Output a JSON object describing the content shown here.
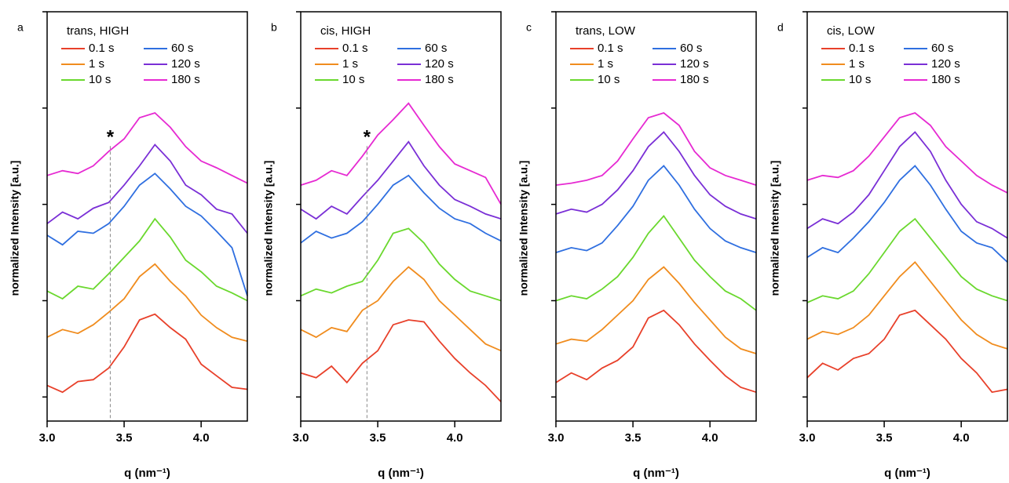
{
  "chart_data": [
    {
      "type": "line",
      "panel": "a",
      "legend_title": "trans, HIGH",
      "xlabel": "q (nm⁻¹)",
      "ylabel": "normalized Intensity [a.u.]",
      "x": [
        3.0,
        3.1,
        3.2,
        3.3,
        3.4,
        3.5,
        3.6,
        3.7,
        3.8,
        3.9,
        4.0,
        4.1,
        4.2,
        4.3
      ],
      "xlim": [
        3.0,
        4.3
      ],
      "ylim": [
        -0.25,
        4
      ],
      "xticks": [
        {
          "value": 3,
          "label": "3.0"
        },
        {
          "value": 3.5,
          "label": "3.5"
        },
        {
          "value": 4,
          "label": "4.0"
        }
      ],
      "yticks": [
        0,
        1,
        2,
        3,
        4
      ],
      "annotations": [
        {
          "text": "*",
          "x": 3.41,
          "y": 2.72
        }
      ],
      "series": [
        {
          "name": "0.1 s",
          "color": "#e8402a",
          "values": [
            0.12,
            0.05,
            0.16,
            0.18,
            0.3,
            0.52,
            0.8,
            0.86,
            0.72,
            0.6,
            0.34,
            0.22,
            0.1,
            0.08
          ]
        },
        {
          "name": "1 s",
          "color": "#f08c1e",
          "values": [
            0.62,
            0.7,
            0.66,
            0.75,
            0.88,
            1.02,
            1.25,
            1.38,
            1.2,
            1.05,
            0.85,
            0.72,
            0.62,
            0.58
          ]
        },
        {
          "name": "10 s",
          "color": "#6ad82e",
          "values": [
            1.1,
            1.02,
            1.15,
            1.12,
            1.28,
            1.45,
            1.62,
            1.85,
            1.66,
            1.42,
            1.3,
            1.15,
            1.08,
            1.0
          ]
        },
        {
          "name": "60 s",
          "color": "#2f6fe0",
          "values": [
            1.68,
            1.58,
            1.72,
            1.7,
            1.8,
            1.98,
            2.2,
            2.32,
            2.16,
            1.98,
            1.88,
            1.72,
            1.55,
            1.05
          ]
        },
        {
          "name": "120 s",
          "color": "#7a2fd6",
          "values": [
            1.8,
            1.92,
            1.85,
            1.96,
            2.02,
            2.2,
            2.4,
            2.62,
            2.45,
            2.2,
            2.1,
            1.95,
            1.9,
            1.7
          ]
        },
        {
          "name": "180 s",
          "color": "#e62ad2",
          "values": [
            2.3,
            2.35,
            2.32,
            2.4,
            2.55,
            2.68,
            2.9,
            2.95,
            2.8,
            2.6,
            2.45,
            2.38,
            2.3,
            2.22
          ]
        }
      ]
    },
    {
      "type": "line",
      "panel": "b",
      "legend_title": "cis, HIGH",
      "xlabel": "q (nm⁻¹)",
      "ylabel": "normalized Intensity [a.u.]",
      "x": [
        3.0,
        3.1,
        3.2,
        3.3,
        3.4,
        3.5,
        3.6,
        3.7,
        3.8,
        3.9,
        4.0,
        4.1,
        4.2,
        4.3
      ],
      "xlim": [
        3.0,
        4.3
      ],
      "ylim": [
        -0.25,
        4
      ],
      "xticks": [
        {
          "value": 3,
          "label": "3.0"
        },
        {
          "value": 3.5,
          "label": "3.5"
        },
        {
          "value": 4,
          "label": "4.0"
        }
      ],
      "yticks": [
        0,
        1,
        2,
        3,
        4
      ],
      "annotations": [
        {
          "text": "*",
          "x": 3.43,
          "y": 2.72
        }
      ],
      "series": [
        {
          "name": "0.1 s",
          "color": "#e8402a",
          "values": [
            0.25,
            0.2,
            0.32,
            0.15,
            0.35,
            0.48,
            0.75,
            0.8,
            0.78,
            0.58,
            0.4,
            0.25,
            0.12,
            -0.05
          ]
        },
        {
          "name": "1 s",
          "color": "#f08c1e",
          "values": [
            0.7,
            0.62,
            0.72,
            0.68,
            0.9,
            1.0,
            1.2,
            1.35,
            1.22,
            1.0,
            0.85,
            0.7,
            0.55,
            0.48
          ]
        },
        {
          "name": "10 s",
          "color": "#6ad82e",
          "values": [
            1.05,
            1.12,
            1.08,
            1.15,
            1.2,
            1.42,
            1.7,
            1.75,
            1.6,
            1.38,
            1.22,
            1.1,
            1.05,
            1.0
          ]
        },
        {
          "name": "60 s",
          "color": "#2f6fe0",
          "values": [
            1.6,
            1.72,
            1.65,
            1.7,
            1.82,
            2.0,
            2.2,
            2.3,
            2.12,
            1.96,
            1.85,
            1.8,
            1.7,
            1.62
          ]
        },
        {
          "name": "120 s",
          "color": "#7a2fd6",
          "values": [
            1.95,
            1.85,
            1.98,
            1.9,
            2.08,
            2.25,
            2.45,
            2.65,
            2.4,
            2.2,
            2.05,
            1.98,
            1.9,
            1.85
          ]
        },
        {
          "name": "180 s",
          "color": "#e62ad2",
          "values": [
            2.2,
            2.25,
            2.35,
            2.3,
            2.5,
            2.72,
            2.88,
            3.05,
            2.82,
            2.6,
            2.42,
            2.35,
            2.28,
            2.0
          ]
        }
      ]
    },
    {
      "type": "line",
      "panel": "c",
      "legend_title": "trans, LOW",
      "xlabel": "q (nm⁻¹)",
      "ylabel": "normalized Intensity [a.u.]",
      "x": [
        3.0,
        3.1,
        3.2,
        3.3,
        3.4,
        3.5,
        3.6,
        3.7,
        3.8,
        3.9,
        4.0,
        4.1,
        4.2,
        4.3
      ],
      "xlim": [
        3.0,
        4.3
      ],
      "ylim": [
        -0.25,
        4
      ],
      "xticks": [
        {
          "value": 3,
          "label": "3.0"
        },
        {
          "value": 3.5,
          "label": "3.5"
        },
        {
          "value": 4,
          "label": "4.0"
        }
      ],
      "yticks": [
        0,
        1,
        2,
        3,
        4
      ],
      "series": [
        {
          "name": "0.1 s",
          "color": "#e8402a",
          "values": [
            0.15,
            0.25,
            0.18,
            0.3,
            0.38,
            0.52,
            0.82,
            0.9,
            0.75,
            0.55,
            0.38,
            0.22,
            0.1,
            0.05
          ]
        },
        {
          "name": "1 s",
          "color": "#f08c1e",
          "values": [
            0.55,
            0.6,
            0.58,
            0.7,
            0.85,
            1.0,
            1.22,
            1.35,
            1.18,
            0.98,
            0.8,
            0.62,
            0.5,
            0.45
          ]
        },
        {
          "name": "10 s",
          "color": "#6ad82e",
          "values": [
            1.0,
            1.05,
            1.02,
            1.12,
            1.25,
            1.45,
            1.7,
            1.88,
            1.65,
            1.42,
            1.25,
            1.1,
            1.02,
            0.9
          ]
        },
        {
          "name": "60 s",
          "color": "#2f6fe0",
          "values": [
            1.5,
            1.55,
            1.52,
            1.6,
            1.78,
            1.98,
            2.25,
            2.4,
            2.2,
            1.95,
            1.75,
            1.62,
            1.55,
            1.5
          ]
        },
        {
          "name": "120 s",
          "color": "#7a2fd6",
          "values": [
            1.9,
            1.95,
            1.92,
            2.0,
            2.15,
            2.35,
            2.6,
            2.75,
            2.55,
            2.3,
            2.1,
            1.98,
            1.9,
            1.85
          ]
        },
        {
          "name": "180 s",
          "color": "#e62ad2",
          "values": [
            2.2,
            2.22,
            2.25,
            2.3,
            2.45,
            2.68,
            2.9,
            2.95,
            2.82,
            2.55,
            2.38,
            2.3,
            2.25,
            2.2
          ]
        }
      ]
    },
    {
      "type": "line",
      "panel": "d",
      "legend_title": "cis, LOW",
      "xlabel": "q (nm⁻¹)",
      "ylabel": "normalized Intensity [a.u.]",
      "x": [
        3.0,
        3.1,
        3.2,
        3.3,
        3.4,
        3.5,
        3.6,
        3.7,
        3.8,
        3.9,
        4.0,
        4.1,
        4.2,
        4.3
      ],
      "xlim": [
        3.0,
        4.3
      ],
      "ylim": [
        -0.25,
        4
      ],
      "xticks": [
        {
          "value": 3,
          "label": "3.0"
        },
        {
          "value": 3.5,
          "label": "3.5"
        },
        {
          "value": 4,
          "label": "4.0"
        }
      ],
      "yticks": [
        0,
        1,
        2,
        3,
        4
      ],
      "series": [
        {
          "name": "0.1 s",
          "color": "#e8402a",
          "values": [
            0.2,
            0.35,
            0.28,
            0.4,
            0.45,
            0.6,
            0.85,
            0.9,
            0.75,
            0.6,
            0.4,
            0.25,
            0.05,
            0.08
          ]
        },
        {
          "name": "1 s",
          "color": "#f08c1e",
          "values": [
            0.6,
            0.68,
            0.65,
            0.72,
            0.85,
            1.05,
            1.25,
            1.4,
            1.2,
            1.0,
            0.8,
            0.65,
            0.55,
            0.5
          ]
        },
        {
          "name": "10 s",
          "color": "#6ad82e",
          "values": [
            0.98,
            1.05,
            1.02,
            1.1,
            1.28,
            1.5,
            1.72,
            1.85,
            1.65,
            1.45,
            1.25,
            1.12,
            1.05,
            1.0
          ]
        },
        {
          "name": "60 s",
          "color": "#2f6fe0",
          "values": [
            1.45,
            1.55,
            1.5,
            1.65,
            1.82,
            2.02,
            2.25,
            2.4,
            2.2,
            1.95,
            1.72,
            1.6,
            1.55,
            1.4
          ]
        },
        {
          "name": "120 s",
          "color": "#7a2fd6",
          "values": [
            1.75,
            1.85,
            1.8,
            1.92,
            2.1,
            2.35,
            2.6,
            2.75,
            2.55,
            2.25,
            2.0,
            1.82,
            1.75,
            1.65
          ]
        },
        {
          "name": "180 s",
          "color": "#e62ad2",
          "values": [
            2.25,
            2.3,
            2.28,
            2.35,
            2.5,
            2.7,
            2.9,
            2.95,
            2.82,
            2.6,
            2.45,
            2.3,
            2.2,
            2.12
          ]
        }
      ]
    }
  ]
}
